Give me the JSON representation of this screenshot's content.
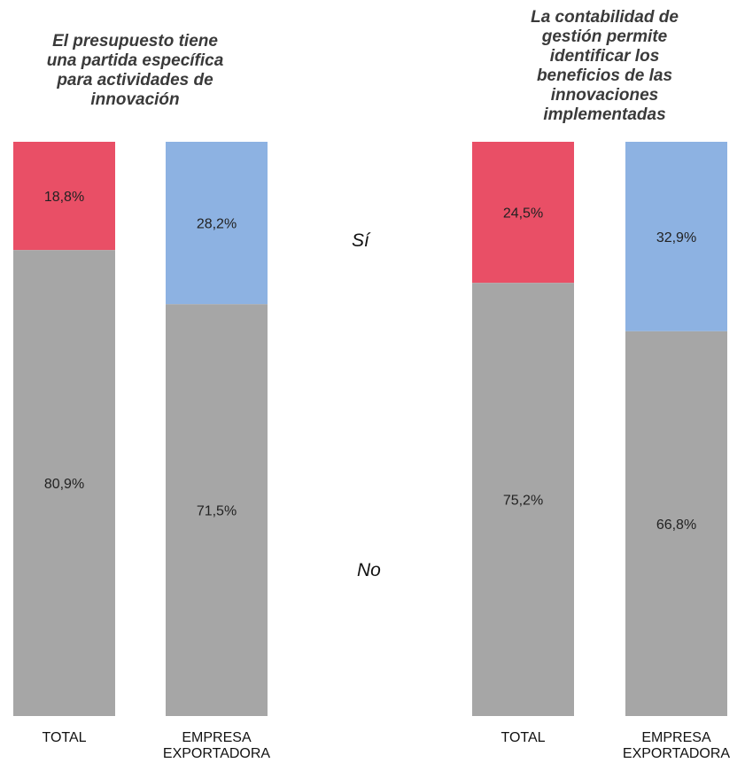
{
  "chart_data": [
    {
      "type": "bar",
      "stacked": true,
      "title": "El presupuesto tiene\nuna partida específica\npara actividades de\ninnovación",
      "categories": [
        "TOTAL",
        "EMPRESA\nEXPORTADORA"
      ],
      "series": [
        {
          "name": "Sí",
          "values": [
            18.8,
            28.2
          ],
          "labels": [
            "18,8%",
            "28,2%"
          ]
        },
        {
          "name": "No",
          "values": [
            80.9,
            71.5
          ],
          "labels": [
            "80,9%",
            "71,5%"
          ]
        }
      ],
      "ylim": [
        0,
        100
      ]
    },
    {
      "type": "bar",
      "stacked": true,
      "title": "La contabilidad de\ngestión permite\nidentificar los\nbeneficios de las\ninnovaciones\nimplementadas",
      "categories": [
        "TOTAL",
        "EMPRESA\nEXPORTADORA"
      ],
      "series": [
        {
          "name": "Sí",
          "values": [
            24.5,
            32.9
          ],
          "labels": [
            "24,5%",
            "32,9%"
          ]
        },
        {
          "name": "No",
          "values": [
            75.2,
            66.8
          ],
          "labels": [
            "75,2%",
            "66,8%"
          ]
        }
      ],
      "ylim": [
        0,
        100
      ]
    }
  ],
  "legend": {
    "yes": "Sí",
    "no": "No"
  },
  "colors": {
    "total_yes": "#e94f66",
    "exporter_yes": "#8db2e2",
    "no": "#a6a6a6",
    "label_text": "#222222"
  }
}
